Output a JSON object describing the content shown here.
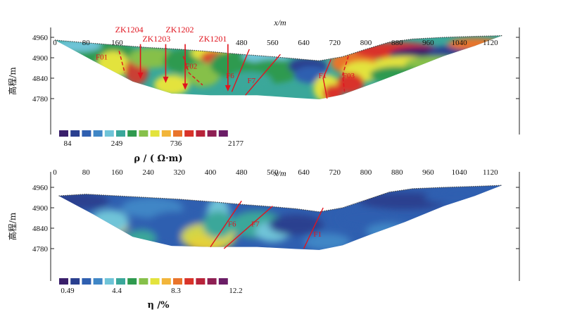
{
  "chart_data": [
    {
      "type": "heatmap",
      "panel": "resistivity",
      "xlabel": "x/m",
      "ylabel": "高程/m",
      "x_ticks": [
        0,
        80,
        160,
        240,
        320,
        400,
        480,
        560,
        640,
        720,
        800,
        880,
        960,
        1040,
        1120
      ],
      "x_tick_labels": [
        "0",
        "80",
        "160",
        "",
        "",
        "",
        "480",
        "560",
        "640",
        "720",
        "800",
        "880",
        "960",
        "1040",
        "1120"
      ],
      "y_ticks": [
        4960,
        4900,
        4840,
        4780
      ],
      "xlim": [
        0,
        1160
      ],
      "ylim": [
        4760,
        4975
      ],
      "colorbar": {
        "title": "ρ / ( Ω·m)",
        "labels": [
          "84",
          "249",
          "736",
          "2177"
        ],
        "colors": [
          "#3a1f6b",
          "#2a3f8f",
          "#2f5fb0",
          "#3f86c6",
          "#6fc4d8",
          "#3aa79a",
          "#2f9a4f",
          "#86c04a",
          "#e3e33c",
          "#f2b53a",
          "#e9742b",
          "#d9332a",
          "#b8233a",
          "#8e1f53",
          "#6b1d66"
        ]
      },
      "boreholes": [
        {
          "name": "ZK1204",
          "x": 220
        },
        {
          "name": "ZK1203",
          "x": 285
        },
        {
          "name": "ZK1202",
          "x": 335
        },
        {
          "name": "ZK1201",
          "x": 445
        }
      ],
      "faults": [
        "F01",
        "F02",
        "F6",
        "F7",
        "F1",
        "F03"
      ]
    },
    {
      "type": "heatmap",
      "panel": "chargeability",
      "xlabel": "x/m",
      "ylabel": "高程/m",
      "x_ticks": [
        0,
        80,
        160,
        240,
        320,
        400,
        480,
        560,
        640,
        720,
        800,
        880,
        960,
        1040,
        1120
      ],
      "x_tick_labels": [
        "0",
        "80",
        "160",
        "240",
        "320",
        "400",
        "480",
        "560",
        "640",
        "720",
        "800",
        "880",
        "960",
        "1040",
        "1120"
      ],
      "y_ticks": [
        4960,
        4900,
        4840,
        4780
      ],
      "xlim": [
        0,
        1160
      ],
      "ylim": [
        4760,
        4975
      ],
      "colorbar": {
        "title": "η /%",
        "labels": [
          "0.49",
          "4.4",
          "8.3",
          "12.2"
        ],
        "colors": [
          "#3a1f6b",
          "#2a3f8f",
          "#2f5fb0",
          "#3f86c6",
          "#6fc4d8",
          "#3aa79a",
          "#2f9a4f",
          "#86c04a",
          "#e3e33c",
          "#f2b53a",
          "#e9742b",
          "#d9332a",
          "#b8233a",
          "#8e1f53",
          "#6b1d66"
        ]
      },
      "faults": [
        "F6",
        "F7",
        "F1"
      ]
    }
  ]
}
